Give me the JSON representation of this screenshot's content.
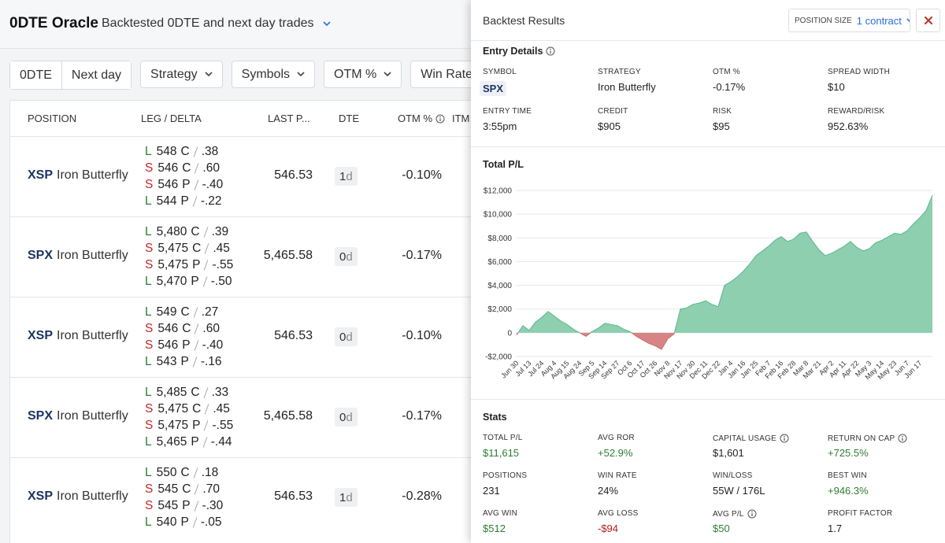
{
  "header": {
    "title": "0DTE Oracle",
    "subtitle": "Backtested 0DTE and next day trades"
  },
  "filters": {
    "toggle": [
      "0DTE",
      "Next day"
    ],
    "dropdowns": [
      "Strategy",
      "Symbols",
      "OTM %",
      "Win Rate"
    ]
  },
  "table": {
    "columns": [
      "POSITION",
      "LEG / DELTA",
      "LAST P...",
      "DTE",
      "OTM %",
      "ITM"
    ],
    "rows": [
      {
        "symbol": "XSP",
        "strategy": "Iron Butterfly",
        "legs": [
          {
            "side": "L",
            "strike": "548",
            "type": "C",
            "delta": ".38"
          },
          {
            "side": "S",
            "strike": "546",
            "type": "C",
            "delta": ".60"
          },
          {
            "side": "S",
            "strike": "546",
            "type": "P",
            "delta": "-.40"
          },
          {
            "side": "L",
            "strike": "544",
            "type": "P",
            "delta": "-.22"
          }
        ],
        "last": "546.53",
        "dte": {
          "value": "1",
          "unit": "d"
        },
        "otm": "-0.10%"
      },
      {
        "symbol": "SPX",
        "strategy": "Iron Butterfly",
        "legs": [
          {
            "side": "L",
            "strike": "5,480",
            "type": "C",
            "delta": ".39"
          },
          {
            "side": "S",
            "strike": "5,475",
            "type": "C",
            "delta": ".45"
          },
          {
            "side": "S",
            "strike": "5,475",
            "type": "P",
            "delta": "-.55"
          },
          {
            "side": "L",
            "strike": "5,470",
            "type": "P",
            "delta": "-.50"
          }
        ],
        "last": "5,465.58",
        "dte": {
          "value": "0",
          "unit": "d"
        },
        "otm": "-0.17%"
      },
      {
        "symbol": "XSP",
        "strategy": "Iron Butterfly",
        "legs": [
          {
            "side": "L",
            "strike": "549",
            "type": "C",
            "delta": ".27"
          },
          {
            "side": "S",
            "strike": "546",
            "type": "C",
            "delta": ".60"
          },
          {
            "side": "S",
            "strike": "546",
            "type": "P",
            "delta": "-.40"
          },
          {
            "side": "L",
            "strike": "543",
            "type": "P",
            "delta": "-.16"
          }
        ],
        "last": "546.53",
        "dte": {
          "value": "0",
          "unit": "d"
        },
        "otm": "-0.10%"
      },
      {
        "symbol": "SPX",
        "strategy": "Iron Butterfly",
        "legs": [
          {
            "side": "L",
            "strike": "5,485",
            "type": "C",
            "delta": ".33"
          },
          {
            "side": "S",
            "strike": "5,475",
            "type": "C",
            "delta": ".45"
          },
          {
            "side": "S",
            "strike": "5,475",
            "type": "P",
            "delta": "-.55"
          },
          {
            "side": "L",
            "strike": "5,465",
            "type": "P",
            "delta": "-.44"
          }
        ],
        "last": "5,465.58",
        "dte": {
          "value": "0",
          "unit": "d"
        },
        "otm": "-0.17%"
      },
      {
        "symbol": "XSP",
        "strategy": "Iron Butterfly",
        "legs": [
          {
            "side": "L",
            "strike": "550",
            "type": "C",
            "delta": ".18"
          },
          {
            "side": "S",
            "strike": "545",
            "type": "C",
            "delta": ".70"
          },
          {
            "side": "S",
            "strike": "545",
            "type": "P",
            "delta": "-.30"
          },
          {
            "side": "L",
            "strike": "540",
            "type": "P",
            "delta": "-.05"
          }
        ],
        "last": "546.53",
        "dte": {
          "value": "1",
          "unit": "d"
        },
        "otm": "-0.28%"
      }
    ]
  },
  "panel": {
    "title": "Backtest Results",
    "position_size": {
      "label": "POSITION SIZE",
      "value": "1 contract"
    },
    "entry_details": {
      "title": "Entry Details",
      "fields": [
        {
          "label": "SYMBOL",
          "value": "SPX",
          "chip": true
        },
        {
          "label": "STRATEGY",
          "value": "Iron Butterfly"
        },
        {
          "label": "OTM %",
          "value": "-0.17%"
        },
        {
          "label": "SPREAD WIDTH",
          "value": "$10"
        },
        {
          "label": "ENTRY TIME",
          "value": "3:55pm"
        },
        {
          "label": "CREDIT",
          "value": "$905"
        },
        {
          "label": "RISK",
          "value": "$95"
        },
        {
          "label": "REWARD/RISK",
          "value": "952.63%"
        }
      ]
    },
    "stats": {
      "title": "Stats",
      "fields": [
        {
          "label": "TOTAL P/L",
          "value": "$11,615",
          "color": "#2e7d32"
        },
        {
          "label": "AVG ROR",
          "value": "+52.9%",
          "color": "#2e7d32"
        },
        {
          "label": "CAPITAL USAGE",
          "value": "$1,601",
          "info": true
        },
        {
          "label": "RETURN ON CAP",
          "value": "+725.5%",
          "color": "#2e7d32",
          "info": true
        },
        {
          "label": "POSITIONS",
          "value": "231"
        },
        {
          "label": "WIN RATE",
          "value": "24%"
        },
        {
          "label": "WIN/LOSS",
          "value": "55W / 176L"
        },
        {
          "label": "BEST WIN",
          "value": "+946.3%",
          "color": "#2e7d32"
        },
        {
          "label": "AVG WIN",
          "value": "$512",
          "color": "#2e7d32"
        },
        {
          "label": "AVG LOSS",
          "value": "-$94",
          "color": "#b71c1c"
        },
        {
          "label": "AVG P/L",
          "value": "$50",
          "color": "#2e7d32",
          "info": true
        },
        {
          "label": "PROFIT FACTOR",
          "value": "1.7"
        }
      ]
    }
  },
  "chart_data": {
    "type": "area",
    "title": "Total P/L",
    "categories": [
      "Jun 30",
      null,
      "Jul 13",
      null,
      "Jul 24",
      null,
      "Aug 4",
      null,
      "Aug 15",
      null,
      "Aug 24",
      null,
      "Sep 5",
      null,
      "Sep 14",
      null,
      "Sep 27",
      null,
      "Oct 6",
      null,
      "Oct 17",
      null,
      "Oct 26",
      null,
      "Nov 8",
      null,
      "Nov 17",
      null,
      "Nov 30",
      null,
      "Dec 11",
      null,
      "Dec 22",
      null,
      "Jan 4",
      null,
      "Jan 16",
      null,
      "Jan 25",
      null,
      "Feb 7",
      null,
      "Feb 16",
      null,
      "Feb 28",
      null,
      "Mar 8",
      null,
      "Mar 21",
      null,
      "Apr 2",
      null,
      "Apr 11",
      null,
      "Apr 22",
      null,
      "May 3",
      null,
      "May 14",
      null,
      "May 23",
      null,
      "Jun 7",
      null,
      "Jun 17",
      null,
      null
    ],
    "values": [
      -200,
      600,
      200,
      900,
      1300,
      1800,
      1400,
      1000,
      700,
      300,
      0,
      -300,
      100,
      400,
      800,
      700,
      600,
      300,
      100,
      -300,
      -600,
      -900,
      -1100,
      -1400,
      -500,
      -100,
      2000,
      2100,
      2400,
      2500,
      2700,
      2400,
      2200,
      4000,
      4300,
      4700,
      5200,
      5800,
      6500,
      6900,
      7300,
      7800,
      8100,
      7700,
      7900,
      8400,
      8500,
      7700,
      7000,
      6500,
      6700,
      7000,
      7300,
      7700,
      7200,
      6900,
      7100,
      7600,
      7800,
      8100,
      8400,
      8300,
      8600,
      9200,
      9700,
      10300,
      11600
    ],
    "ylim": [
      -2000,
      12000
    ],
    "yticks": [
      {
        "value": -2000,
        "label": "-$2,000"
      },
      0,
      {
        "value": 2000,
        "label": "$2,000"
      },
      {
        "value": 4000,
        "label": "$4,000"
      },
      {
        "value": 6000,
        "label": "$6,000"
      },
      {
        "value": 8000,
        "label": "$8,000"
      },
      {
        "value": 10000,
        "label": "$10,000"
      },
      {
        "value": 12000,
        "label": "$12,000"
      }
    ],
    "grid": true,
    "positive_color": "#8dcfae",
    "negative_color": "#d98484",
    "positive_line": "#5fb78e",
    "negative_line": "#c76a6a"
  }
}
